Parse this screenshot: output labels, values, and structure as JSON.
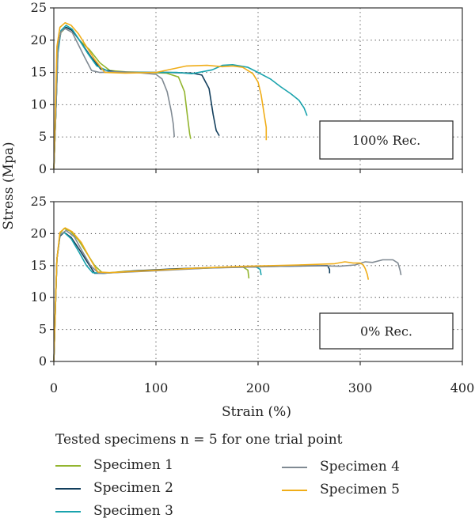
{
  "chart_data": {
    "type": "line",
    "ylabel": "Stress (Mpa)",
    "xlabel": "Strain (%)",
    "xlim": [
      0,
      400
    ],
    "ylim": [
      0,
      25
    ],
    "x_ticks": [
      0,
      100,
      200,
      300,
      400
    ],
    "y_ticks": [
      0,
      5,
      10,
      15,
      20,
      25
    ],
    "grid": "dotted",
    "legend_placement": "bottom",
    "colors": {
      "Specimen 1": "#93b52f",
      "Specimen 2": "#123e5c",
      "Specimen 3": "#1aa3ad",
      "Specimen 4": "#808a93",
      "Specimen 5": "#f0ad18"
    },
    "panels": [
      {
        "box_label": "100% Rec.",
        "series": [
          {
            "name": "Specimen 1",
            "points": [
              [
                0,
                0
              ],
              [
                2,
                9
              ],
              [
                4,
                19
              ],
              [
                7,
                21.2
              ],
              [
                12,
                22
              ],
              [
                18,
                21.5
              ],
              [
                25,
                20
              ],
              [
                35,
                18.5
              ],
              [
                45,
                16.5
              ],
              [
                55,
                15.3
              ],
              [
                70,
                15.1
              ],
              [
                90,
                15
              ],
              [
                110,
                14.9
              ],
              [
                122,
                14.3
              ],
              [
                128,
                12
              ],
              [
                131,
                8
              ],
              [
                133,
                5.5
              ],
              [
                134,
                4.7
              ]
            ]
          },
          {
            "name": "Specimen 2",
            "points": [
              [
                0,
                0
              ],
              [
                2,
                9
              ],
              [
                4,
                19
              ],
              [
                7,
                21.4
              ],
              [
                12,
                22
              ],
              [
                18,
                21.5
              ],
              [
                26,
                19.8
              ],
              [
                36,
                17.5
              ],
              [
                46,
                15.5
              ],
              [
                60,
                15.1
              ],
              [
                80,
                15
              ],
              [
                110,
                15
              ],
              [
                135,
                14.9
              ],
              [
                145,
                14.6
              ],
              [
                152,
                12.5
              ],
              [
                156,
                8.5
              ],
              [
                159,
                6
              ],
              [
                162,
                5.2
              ]
            ]
          },
          {
            "name": "Specimen 3",
            "points": [
              [
                0,
                0
              ],
              [
                2,
                9
              ],
              [
                4,
                18
              ],
              [
                7,
                21.5
              ],
              [
                12,
                22.3
              ],
              [
                18,
                21.7
              ],
              [
                25,
                20
              ],
              [
                33,
                18
              ],
              [
                42,
                16
              ],
              [
                55,
                15.1
              ],
              [
                80,
                15
              ],
              [
                120,
                15
              ],
              [
                135,
                14.8
              ],
              [
                145,
                15.1
              ],
              [
                155,
                15.4
              ],
              [
                165,
                16.1
              ],
              [
                175,
                16.2
              ],
              [
                190,
                15.8
              ],
              [
                200,
                15
              ],
              [
                212,
                14
              ],
              [
                222,
                12.8
              ],
              [
                232,
                11.7
              ],
              [
                240,
                10.7
              ],
              [
                245,
                9.5
              ],
              [
                248,
                8.3
              ]
            ]
          },
          {
            "name": "Specimen 4",
            "points": [
              [
                0,
                0
              ],
              [
                2,
                9
              ],
              [
                4,
                19
              ],
              [
                7,
                21.3
              ],
              [
                11,
                21.8
              ],
              [
                18,
                21.2
              ],
              [
                24,
                19.3
              ],
              [
                30,
                17.4
              ],
              [
                37,
                15.3
              ],
              [
                45,
                15
              ],
              [
                60,
                15.1
              ],
              [
                80,
                15
              ],
              [
                100,
                14.7
              ],
              [
                106,
                14
              ],
              [
                111,
                12
              ],
              [
                115,
                9
              ],
              [
                117,
                7
              ],
              [
                118,
                5
              ]
            ]
          },
          {
            "name": "Specimen 5",
            "points": [
              [
                0,
                0
              ],
              [
                1.5,
                9
              ],
              [
                3,
                19
              ],
              [
                6,
                22
              ],
              [
                11,
                22.7
              ],
              [
                17,
                22.3
              ],
              [
                24,
                21
              ],
              [
                32,
                19
              ],
              [
                40,
                17
              ],
              [
                50,
                15
              ],
              [
                70,
                14.9
              ],
              [
                100,
                15
              ],
              [
                115,
                15.5
              ],
              [
                130,
                16
              ],
              [
                150,
                16.1
              ],
              [
                165,
                15.9
              ],
              [
                175,
                16
              ],
              [
                185,
                15.8
              ],
              [
                195,
                14.8
              ],
              [
                200,
                13.5
              ],
              [
                203,
                11.5
              ],
              [
                206,
                8.5
              ],
              [
                208,
                6.5
              ],
              [
                208,
                4.5
              ]
            ]
          }
        ]
      },
      {
        "box_label": "0% Rec.",
        "series": [
          {
            "name": "Specimen 1",
            "points": [
              [
                0,
                0
              ],
              [
                1.5,
                8
              ],
              [
                3,
                16
              ],
              [
                6,
                20
              ],
              [
                10,
                20.8
              ],
              [
                16,
                20.4
              ],
              [
                24,
                19
              ],
              [
                32,
                17
              ],
              [
                40,
                15
              ],
              [
                48,
                13.8
              ],
              [
                70,
                14.1
              ],
              [
                100,
                14.3
              ],
              [
                150,
                14.6
              ],
              [
                185,
                14.8
              ],
              [
                190,
                14.3
              ],
              [
                191,
                13
              ]
            ]
          },
          {
            "name": "Specimen 2",
            "points": [
              [
                0,
                0
              ],
              [
                1.5,
                8
              ],
              [
                3,
                16
              ],
              [
                6,
                19.6
              ],
              [
                10,
                20.2
              ],
              [
                17,
                19.4
              ],
              [
                25,
                17.5
              ],
              [
                33,
                15.5
              ],
              [
                40,
                13.8
              ],
              [
                50,
                13.8
              ],
              [
                80,
                14.2
              ],
              [
                120,
                14.5
              ],
              [
                180,
                14.8
              ],
              [
                230,
                14.9
              ],
              [
                268,
                15
              ],
              [
                270,
                14.4
              ],
              [
                270,
                13.8
              ]
            ]
          },
          {
            "name": "Specimen 3",
            "points": [
              [
                0,
                0
              ],
              [
                1.5,
                8
              ],
              [
                3,
                16
              ],
              [
                6,
                19.8
              ],
              [
                10,
                20.2
              ],
              [
                17,
                19.2
              ],
              [
                25,
                17
              ],
              [
                32,
                15
              ],
              [
                38,
                13.9
              ],
              [
                48,
                13.8
              ],
              [
                80,
                14.1
              ],
              [
                120,
                14.4
              ],
              [
                160,
                14.7
              ],
              [
                198,
                14.8
              ],
              [
                202,
                14.4
              ],
              [
                203,
                13.5
              ]
            ]
          },
          {
            "name": "Specimen 4",
            "points": [
              [
                0,
                0
              ],
              [
                1.5,
                8
              ],
              [
                3,
                16
              ],
              [
                6,
                19.8
              ],
              [
                12,
                20.5
              ],
              [
                20,
                19.5
              ],
              [
                28,
                17.2
              ],
              [
                36,
                15
              ],
              [
                44,
                13.8
              ],
              [
                60,
                13.9
              ],
              [
                100,
                14.2
              ],
              [
                150,
                14.6
              ],
              [
                200,
                14.8
              ],
              [
                250,
                15
              ],
              [
                280,
                14.9
              ],
              [
                295,
                15.1
              ],
              [
                305,
                15.6
              ],
              [
                312,
                15.5
              ],
              [
                322,
                15.9
              ],
              [
                332,
                15.9
              ],
              [
                337,
                15.4
              ],
              [
                339,
                14.3
              ],
              [
                340,
                13.5
              ]
            ]
          },
          {
            "name": "Specimen 5",
            "points": [
              [
                0,
                0
              ],
              [
                1.5,
                8
              ],
              [
                3,
                16
              ],
              [
                6,
                20.2
              ],
              [
                11,
                20.9
              ],
              [
                18,
                20.3
              ],
              [
                27,
                18.6
              ],
              [
                35,
                16.2
              ],
              [
                43,
                14
              ],
              [
                55,
                13.9
              ],
              [
                90,
                14.2
              ],
              [
                140,
                14.6
              ],
              [
                190,
                14.9
              ],
              [
                240,
                15.1
              ],
              [
                275,
                15.3
              ],
              [
                285,
                15.6
              ],
              [
                293,
                15.4
              ],
              [
                300,
                15.4
              ],
              [
                303,
                15.1
              ],
              [
                305,
                14.5
              ],
              [
                307,
                13.6
              ],
              [
                308,
                12.8
              ]
            ]
          }
        ]
      }
    ]
  },
  "legend": {
    "title": "Tested specimens n = 5 for one trial point",
    "items": [
      {
        "label": "Specimen 1"
      },
      {
        "label": "Specimen 2"
      },
      {
        "label": "Specimen 3"
      },
      {
        "label": "Specimen 4"
      },
      {
        "label": "Specimen 5"
      }
    ]
  }
}
